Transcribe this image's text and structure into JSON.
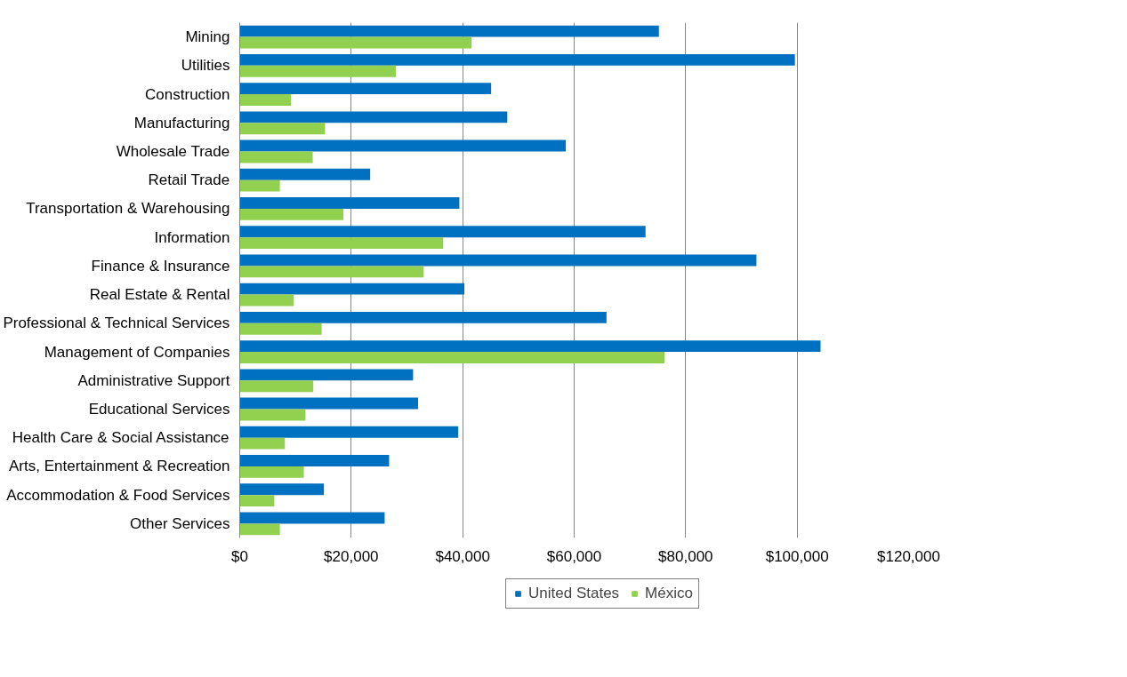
{
  "chart_data": {
    "type": "bar",
    "orientation": "horizontal",
    "categories": [
      "Mining",
      "Utilities",
      "Construction",
      "Manufacturing",
      "Wholesale Trade",
      "Retail Trade",
      "Transportation & Warehousing",
      "Information",
      "Finance & Insurance",
      "Real Estate & Rental",
      "Professional & Technical Services",
      "Management of Companies",
      "Administrative Support",
      "Educational Services",
      "Health Care & Social Assistance",
      "Arts, Entertainment & Recreation",
      "Accommodation & Food Services",
      "Other Services"
    ],
    "series": [
      {
        "name": "United States",
        "color": "#0070c0",
        "values": [
          75200,
          99600,
          45100,
          48000,
          58500,
          23400,
          39400,
          72800,
          92700,
          40300,
          65800,
          104200,
          31100,
          32000,
          39200,
          26800,
          15100,
          26000
        ]
      },
      {
        "name": "México",
        "color": "#92d050",
        "values": [
          41600,
          28000,
          9200,
          15300,
          13100,
          7200,
          18600,
          36500,
          33000,
          9700,
          14700,
          76200,
          13200,
          11800,
          8100,
          11500,
          6200,
          7200
        ]
      }
    ],
    "xlim": [
      0,
      120000
    ],
    "xticks": [
      {
        "value": 0,
        "label": "$0"
      },
      {
        "value": 20000,
        "label": "$20,000"
      },
      {
        "value": 40000,
        "label": "$40,000"
      },
      {
        "value": 60000,
        "label": "$60,000"
      },
      {
        "value": 80000,
        "label": "$80,000"
      },
      {
        "value": 100000,
        "label": "$100,000"
      },
      {
        "value": 120000,
        "label": "$120,000"
      }
    ],
    "grid": "x",
    "legend": "bottom"
  }
}
